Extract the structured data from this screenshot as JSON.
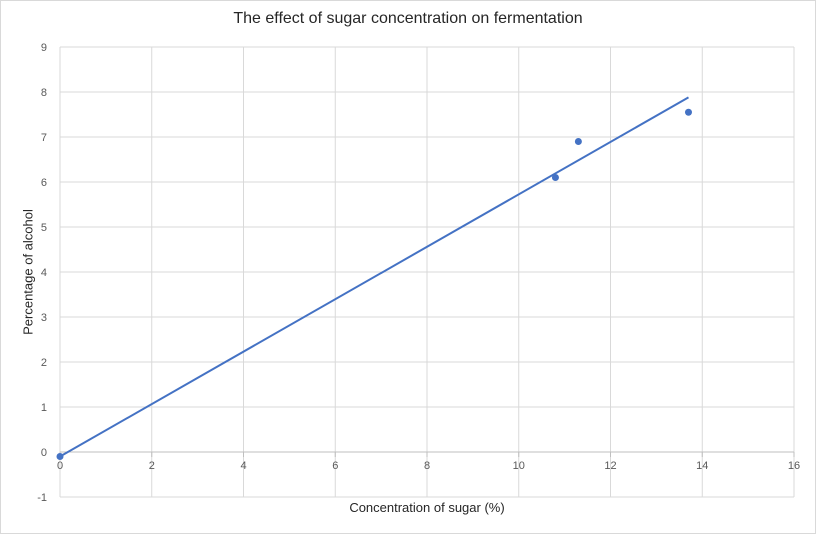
{
  "chart_data": {
    "type": "scatter",
    "title": "The effect of sugar concentration on fermentation",
    "xlabel": "Concentration of sugar (%)",
    "ylabel": "Percentage of alcohol",
    "xlim": [
      0,
      16
    ],
    "ylim": [
      -1,
      9
    ],
    "x_ticks": [
      0,
      2,
      4,
      6,
      8,
      10,
      12,
      14,
      16
    ],
    "y_ticks": [
      -1,
      0,
      1,
      2,
      3,
      4,
      5,
      6,
      7,
      8,
      9
    ],
    "grid": true,
    "legend": "none",
    "series": [
      {
        "x": [
          0,
          10.8,
          11.3,
          13.7
        ],
        "y": [
          -0.1,
          6.1,
          6.9,
          7.55
        ],
        "color": "#4472c4"
      }
    ],
    "trendline": {
      "type": "linear",
      "x_range": [
        0,
        13.7
      ],
      "y_at_start": -0.1,
      "y_at_end": 7.88,
      "color": "#4472c4"
    }
  }
}
